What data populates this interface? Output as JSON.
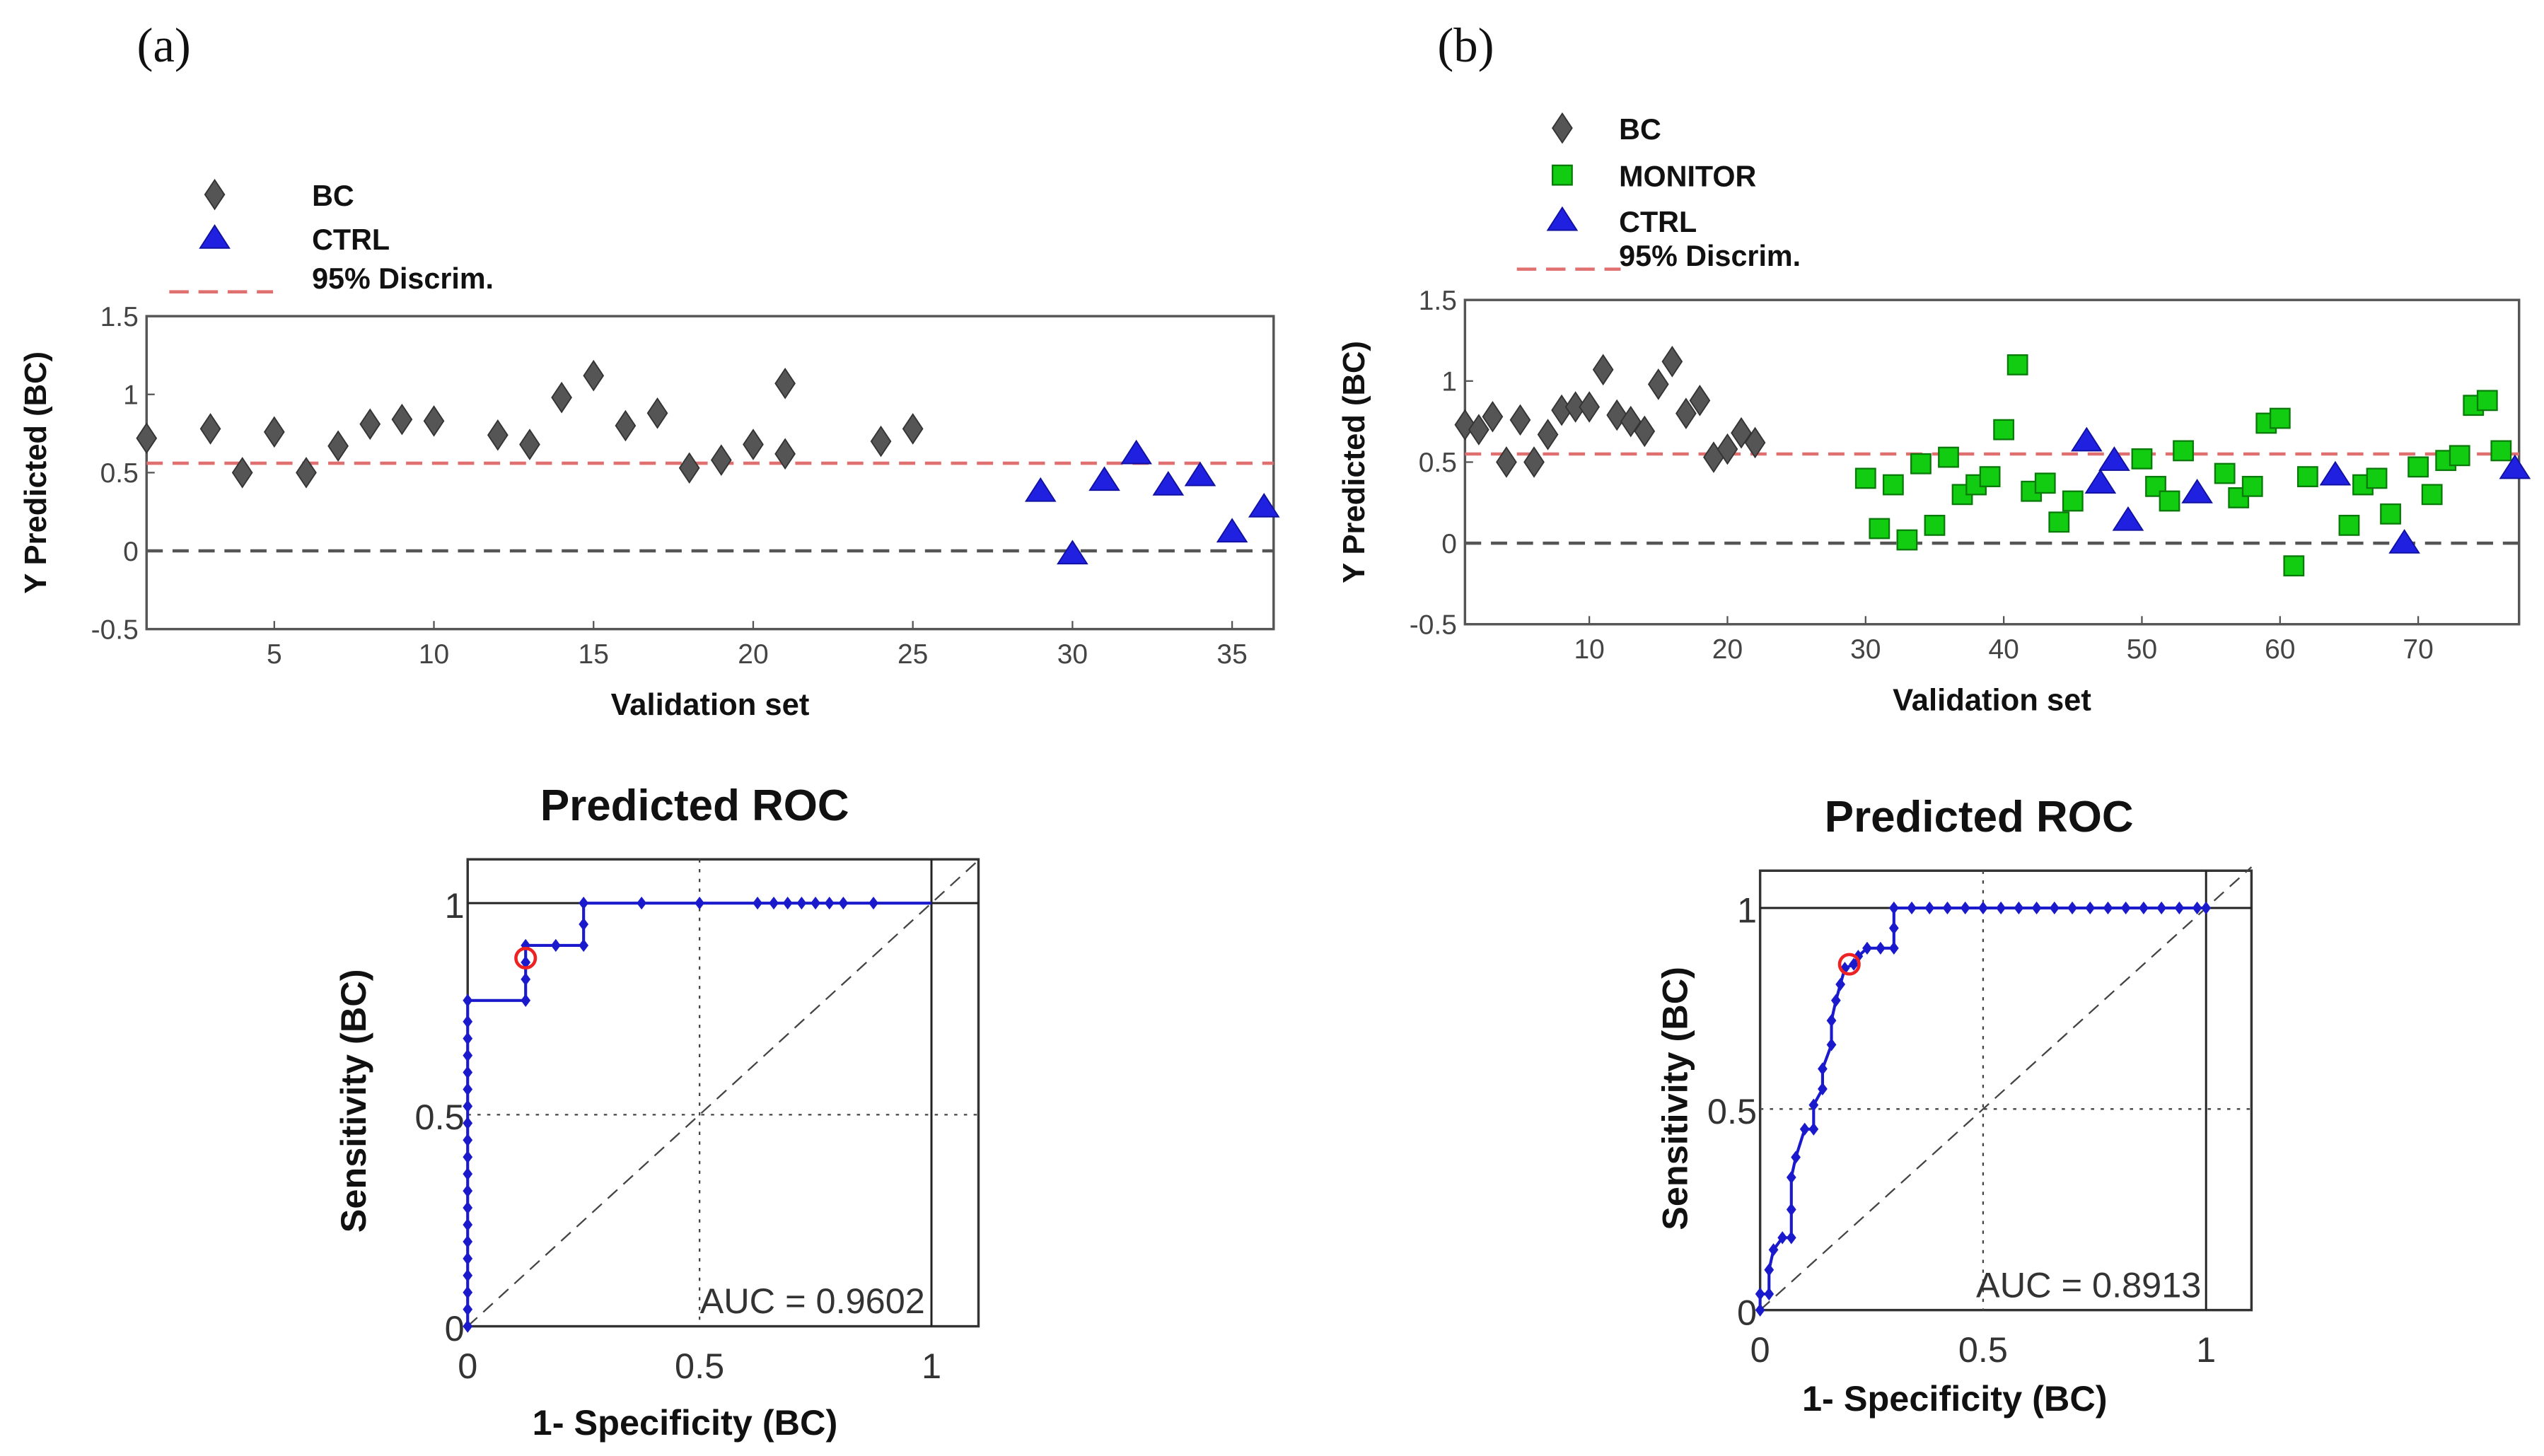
{
  "chart_data": [
    {
      "panel": "(a)",
      "type": "scatter",
      "xlabel": "Validation set",
      "ylabel": "Y Predicted (BC)",
      "xlim": [
        1,
        36.3
      ],
      "ylim": [
        -0.5,
        1.5
      ],
      "xticks": [
        5,
        10,
        15,
        20,
        25,
        30,
        35
      ],
      "yticks": [
        -0.5,
        0,
        0.5,
        1,
        1.5
      ],
      "threshold": 0.56,
      "zero_line": 0,
      "legend": [
        "BC",
        "CTRL",
        "95% Discrim."
      ],
      "series": [
        {
          "name": "BC",
          "marker": "diamond",
          "color": "#555555",
          "points": [
            [
              1,
              0.72
            ],
            [
              3,
              0.78
            ],
            [
              4,
              0.5
            ],
            [
              5,
              0.76
            ],
            [
              6,
              0.5
            ],
            [
              7,
              0.67
            ],
            [
              8,
              0.81
            ],
            [
              9,
              0.84
            ],
            [
              10,
              0.83
            ],
            [
              12,
              0.74
            ],
            [
              13,
              0.68
            ],
            [
              14,
              0.98
            ],
            [
              15,
              1.12
            ],
            [
              16,
              0.8
            ],
            [
              17,
              0.88
            ],
            [
              18,
              0.53
            ],
            [
              19,
              0.58
            ],
            [
              20,
              0.68
            ],
            [
              21,
              1.07
            ],
            [
              21,
              0.62
            ],
            [
              24,
              0.7
            ],
            [
              25,
              0.78
            ]
          ]
        },
        {
          "name": "CTRL",
          "marker": "triangle",
          "color": "#2020e0",
          "points": [
            [
              29,
              0.38
            ],
            [
              30,
              -0.02
            ],
            [
              31,
              0.45
            ],
            [
              32,
              0.62
            ],
            [
              33,
              0.42
            ],
            [
              34,
              0.48
            ],
            [
              35,
              0.12
            ],
            [
              36,
              0.28
            ]
          ]
        }
      ]
    },
    {
      "panel": "(b)",
      "type": "scatter",
      "xlabel": "Validation set",
      "ylabel": "Y Predicted (BC)",
      "xlim": [
        1,
        77.3
      ],
      "ylim": [
        -0.5,
        1.5
      ],
      "xticks": [
        10,
        20,
        30,
        40,
        50,
        60,
        70
      ],
      "yticks": [
        -0.5,
        0,
        0.5,
        1,
        1.5
      ],
      "threshold": 0.55,
      "zero_line": 0,
      "legend": [
        "BC",
        "MONITOR",
        "CTRL",
        "95% Discrim."
      ],
      "series": [
        {
          "name": "BC",
          "marker": "diamond",
          "color": "#555555",
          "points": [
            [
              1,
              0.73
            ],
            [
              2,
              0.7
            ],
            [
              3,
              0.78
            ],
            [
              4,
              0.5
            ],
            [
              5,
              0.76
            ],
            [
              6,
              0.5
            ],
            [
              7,
              0.67
            ],
            [
              8,
              0.82
            ],
            [
              9,
              0.84
            ],
            [
              10,
              0.84
            ],
            [
              11,
              1.07
            ],
            [
              12,
              0.79
            ],
            [
              13,
              0.75
            ],
            [
              14,
              0.69
            ],
            [
              15,
              0.98
            ],
            [
              16,
              1.12
            ],
            [
              17,
              0.8
            ],
            [
              18,
              0.88
            ],
            [
              19,
              0.53
            ],
            [
              20,
              0.58
            ],
            [
              21,
              0.68
            ],
            [
              22,
              0.62
            ]
          ]
        },
        {
          "name": "MONITOR",
          "marker": "square",
          "color": "#11cc11",
          "points": [
            [
              30,
              0.4
            ],
            [
              31,
              0.09
            ],
            [
              32,
              0.36
            ],
            [
              33,
              0.02
            ],
            [
              34,
              0.49
            ],
            [
              35,
              0.11
            ],
            [
              36,
              0.53
            ],
            [
              37,
              0.3
            ],
            [
              38,
              0.36
            ],
            [
              39,
              0.41
            ],
            [
              40,
              0.7
            ],
            [
              41,
              1.1
            ],
            [
              42,
              0.32
            ],
            [
              43,
              0.37
            ],
            [
              44,
              0.13
            ],
            [
              45,
              0.26
            ],
            [
              50,
              0.52
            ],
            [
              51,
              0.35
            ],
            [
              52,
              0.26
            ],
            [
              53,
              0.57
            ],
            [
              56,
              0.43
            ],
            [
              57,
              0.28
            ],
            [
              58,
              0.35
            ],
            [
              59,
              0.74
            ],
            [
              60,
              0.77
            ],
            [
              61,
              -0.14
            ],
            [
              62,
              0.41
            ],
            [
              65,
              0.11
            ],
            [
              66,
              0.36
            ],
            [
              67,
              0.4
            ],
            [
              68,
              0.18
            ],
            [
              70,
              0.47
            ],
            [
              71,
              0.3
            ],
            [
              72,
              0.51
            ],
            [
              73,
              0.54
            ],
            [
              74,
              0.85
            ],
            [
              75,
              0.88
            ],
            [
              76,
              0.57
            ]
          ]
        },
        {
          "name": "CTRL",
          "marker": "triangle",
          "color": "#2020e0",
          "points": [
            [
              46,
              0.63
            ],
            [
              47,
              0.37
            ],
            [
              48,
              0.51
            ],
            [
              49,
              0.14
            ],
            [
              54,
              0.31
            ],
            [
              64,
              0.42
            ],
            [
              69,
              0.0
            ],
            [
              77,
              0.46
            ]
          ]
        }
      ]
    },
    {
      "panel": "(a)",
      "type": "line",
      "title": "Predicted ROC",
      "xlabel": "1- Specificity (BC)",
      "ylabel": "Sensitivity (BC)",
      "xlim": [
        0,
        1.1
      ],
      "ylim": [
        0,
        1.1
      ],
      "xticks": [
        0,
        0.5,
        1
      ],
      "yticks": [
        0,
        0.5,
        1
      ],
      "annotation": "AUC = 0.9602",
      "operating_point": [
        0.125,
        0.87
      ],
      "points": [
        [
          0,
          0
        ],
        [
          0,
          0.04
        ],
        [
          0,
          0.08
        ],
        [
          0,
          0.12
        ],
        [
          0,
          0.16
        ],
        [
          0,
          0.2
        ],
        [
          0,
          0.24
        ],
        [
          0,
          0.28
        ],
        [
          0,
          0.32
        ],
        [
          0,
          0.36
        ],
        [
          0,
          0.4
        ],
        [
          0,
          0.44
        ],
        [
          0,
          0.48
        ],
        [
          0,
          0.52
        ],
        [
          0,
          0.56
        ],
        [
          0,
          0.6
        ],
        [
          0,
          0.64
        ],
        [
          0,
          0.68
        ],
        [
          0,
          0.72
        ],
        [
          0,
          0.77
        ],
        [
          0.125,
          0.77
        ],
        [
          0.125,
          0.82
        ],
        [
          0.125,
          0.86
        ],
        [
          0.125,
          0.9
        ],
        [
          0.19,
          0.9
        ],
        [
          0.25,
          0.9
        ],
        [
          0.25,
          0.95
        ],
        [
          0.25,
          1
        ],
        [
          0.375,
          1
        ],
        [
          0.5,
          1
        ],
        [
          0.625,
          1
        ],
        [
          0.66,
          1
        ],
        [
          0.69,
          1
        ],
        [
          0.72,
          1
        ],
        [
          0.75,
          1
        ],
        [
          0.78,
          1
        ],
        [
          0.81,
          1
        ],
        [
          0.875,
          1
        ]
      ]
    },
    {
      "panel": "(b)",
      "type": "line",
      "title": "Predicted ROC",
      "xlabel": "1- Specificity (BC)",
      "ylabel": "Sensitivity (BC)",
      "xlim": [
        0,
        1.1
      ],
      "ylim": [
        0,
        1.1
      ],
      "xticks": [
        0,
        0.5,
        1
      ],
      "yticks": [
        0,
        0.5,
        1
      ],
      "annotation": "AUC = 0.8913",
      "operating_point": [
        0.2,
        0.86
      ],
      "points": [
        [
          0,
          0
        ],
        [
          0,
          0.04
        ],
        [
          0.02,
          0.04
        ],
        [
          0.02,
          0.1
        ],
        [
          0.03,
          0.15
        ],
        [
          0.05,
          0.18
        ],
        [
          0.07,
          0.18
        ],
        [
          0.07,
          0.25
        ],
        [
          0.07,
          0.33
        ],
        [
          0.08,
          0.38
        ],
        [
          0.1,
          0.45
        ],
        [
          0.12,
          0.45
        ],
        [
          0.12,
          0.51
        ],
        [
          0.14,
          0.55
        ],
        [
          0.14,
          0.6
        ],
        [
          0.16,
          0.66
        ],
        [
          0.16,
          0.72
        ],
        [
          0.17,
          0.77
        ],
        [
          0.18,
          0.81
        ],
        [
          0.19,
          0.85
        ],
        [
          0.21,
          0.86
        ],
        [
          0.22,
          0.88
        ],
        [
          0.24,
          0.9
        ],
        [
          0.27,
          0.9
        ],
        [
          0.3,
          0.9
        ],
        [
          0.3,
          0.95
        ],
        [
          0.3,
          1
        ],
        [
          0.34,
          1
        ],
        [
          0.38,
          1
        ],
        [
          0.42,
          1
        ],
        [
          0.46,
          1
        ],
        [
          0.5,
          1
        ],
        [
          0.54,
          1
        ],
        [
          0.58,
          1
        ],
        [
          0.62,
          1
        ],
        [
          0.66,
          1
        ],
        [
          0.7,
          1
        ],
        [
          0.74,
          1
        ],
        [
          0.78,
          1
        ],
        [
          0.82,
          1
        ],
        [
          0.86,
          1
        ],
        [
          0.9,
          1
        ],
        [
          0.94,
          1
        ],
        [
          0.98,
          1
        ],
        [
          1,
          1
        ]
      ]
    }
  ],
  "colors": {
    "threshold": "#e07070",
    "zero": "#555555",
    "roc": "#1a1acc",
    "op": "#ee2222"
  }
}
